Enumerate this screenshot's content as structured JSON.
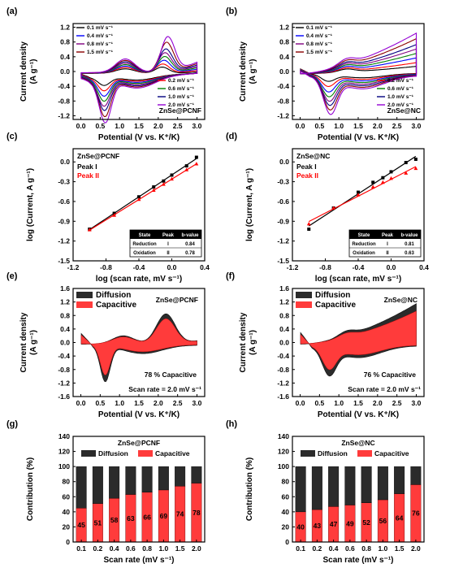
{
  "panels": [
    {
      "id": "a",
      "letter": "(a)",
      "type": "cv",
      "sample": "ZnSe@PCNF",
      "ylabel1": "Current density",
      "ylabel2": "(A g⁻¹)",
      "xlabel": "Potential (V vs. K⁺/K)",
      "xlim": [
        -0.2,
        3.2
      ],
      "ylim": [
        -1.3,
        1.3
      ],
      "xticks": [
        "0.0",
        "0.5",
        "1.0",
        "1.5",
        "2.0",
        "2.5",
        "3.0"
      ],
      "yticks": [
        "-1.2",
        "-0.8",
        "-0.4",
        "0.0",
        "0.4",
        "0.8",
        "1.2"
      ],
      "legend_left": [
        "0.1 mV s⁻¹",
        "0.4 mV s⁻¹",
        "0.8 mV s⁻¹",
        "1.5 mV s⁻¹"
      ],
      "legend_right": [
        "0.2 mV s⁻¹",
        "0.6 mV s⁻¹",
        "1.0 mV s⁻¹",
        "2.0 mV s⁻¹"
      ]
    },
    {
      "id": "b",
      "letter": "(b)",
      "type": "cv",
      "sample": "ZnSe@NC",
      "ylabel1": "Current density",
      "ylabel2": "(A g⁻¹)",
      "xlabel": "Potential (V vs. K⁺/K)",
      "xlim": [
        -0.2,
        3.2
      ],
      "ylim": [
        -1.3,
        1.3
      ],
      "xticks": [
        "0.0",
        "0.5",
        "1.0",
        "1.5",
        "2.0",
        "2.5",
        "3.0"
      ],
      "yticks": [
        "-1.2",
        "-0.8",
        "-0.4",
        "0.0",
        "0.4",
        "0.8",
        "1.2"
      ],
      "legend_left": [
        "0.1 mV s⁻¹",
        "0.4 mV s⁻¹",
        "0.8 mV s⁻¹",
        "1.5 mV s⁻¹"
      ],
      "legend_right": [
        "0.2 mV s⁻¹",
        "0.6 mV s⁻¹",
        "1.0 mV s⁻¹",
        "2.0 mV s⁻¹"
      ]
    },
    {
      "id": "c",
      "letter": "(c)",
      "type": "log",
      "sample": "ZnSe@PCNF",
      "ylabel": "log (Current, A g⁻¹)",
      "xlabel": "log (scan rate, mV s⁻¹)",
      "xlim": [
        -1.2,
        0.4
      ],
      "ylim": [
        -1.5,
        0.2
      ],
      "xticks": [
        "-1.2",
        "-0.8",
        "-0.4",
        "0.0",
        "0.4"
      ],
      "yticks": [
        "-1.5",
        "-1.2",
        "-0.9",
        "-0.6",
        "-0.3",
        "0.0"
      ],
      "peak_labels": [
        "Peak I",
        "Peak II"
      ],
      "table": {
        "header": [
          "State",
          "Peak",
          "b-value"
        ],
        "rows": [
          [
            "Reduction",
            "I",
            "0.84"
          ],
          [
            "Oxidation",
            "II",
            "0.78"
          ]
        ]
      }
    },
    {
      "id": "d",
      "letter": "(d)",
      "type": "log",
      "sample": "ZnSe@NC",
      "ylabel": "log (Current, A g⁻¹)",
      "xlabel": "log (scan rate, mV s⁻¹)",
      "xlim": [
        -1.2,
        0.4
      ],
      "ylim": [
        -1.5,
        0.2
      ],
      "xticks": [
        "-1.2",
        "-0.8",
        "-0.4",
        "0.0",
        "0.4"
      ],
      "yticks": [
        "-1.5",
        "-1.2",
        "-0.9",
        "-0.6",
        "-0.3",
        "0.0"
      ],
      "peak_labels": [
        "Peak I",
        "Peak II"
      ],
      "table": {
        "header": [
          "State",
          "Peak",
          "b-value"
        ],
        "rows": [
          [
            "Reduction",
            "I",
            "0.81"
          ],
          [
            "Oxidation",
            "II",
            "0.63"
          ]
        ]
      }
    },
    {
      "id": "e",
      "letter": "(e)",
      "type": "cap",
      "sample": "ZnSe@PCNF",
      "ylabel1": "Current density",
      "ylabel2": "(A g⁻¹)",
      "xlabel": "Potential (V vs. K⁺/K)",
      "xlim": [
        -0.2,
        3.2
      ],
      "ylim": [
        -1.6,
        1.6
      ],
      "xticks": [
        "0.0",
        "0.5",
        "1.0",
        "1.5",
        "2.0",
        "2.5",
        "3.0"
      ],
      "yticks": [
        "-1.6",
        "-1.2",
        "-0.8",
        "-0.4",
        "0.0",
        "0.4",
        "0.8",
        "1.2",
        "1.6"
      ],
      "legend": [
        "Diffusion",
        "Capacitive"
      ],
      "note": "78 % Capacitive",
      "scan_note": "Scan rate = 2.0 mV s⁻¹"
    },
    {
      "id": "f",
      "letter": "(f)",
      "type": "cap",
      "sample": "ZnSe@NC",
      "ylabel1": "Current density",
      "ylabel2": "(A g⁻¹)",
      "xlabel": "Potential (V vs. K⁺/K)",
      "xlim": [
        -0.2,
        3.2
      ],
      "ylim": [
        -1.6,
        1.6
      ],
      "xticks": [
        "0.0",
        "0.5",
        "1.0",
        "1.5",
        "2.0",
        "2.5",
        "3.0"
      ],
      "yticks": [
        "-1.6",
        "-1.2",
        "-0.8",
        "-0.4",
        "0.0",
        "0.4",
        "0.8",
        "1.2",
        "1.6"
      ],
      "legend": [
        "Diffusion",
        "Capacitive"
      ],
      "note": "76 % Capacitive",
      "scan_note": "Scan rate = 2.0 mV s⁻¹"
    },
    {
      "id": "g",
      "letter": "(g)",
      "type": "bar",
      "sample": "ZnSe@PCNF",
      "ylabel": "Contribution (%)",
      "xlabel": "Scan rate (mV s⁻¹)",
      "yticks": [
        "0",
        "20",
        "40",
        "60",
        "80",
        "100",
        "120",
        "140"
      ],
      "legend": [
        "Diffusion",
        "Capacitive"
      ]
    },
    {
      "id": "h",
      "letter": "(h)",
      "type": "bar",
      "sample": "ZnSe@NC",
      "ylabel": "Contribution (%)",
      "xlabel": "Scan rate (mV s⁻¹)",
      "yticks": [
        "0",
        "20",
        "40",
        "60",
        "80",
        "100",
        "120",
        "140"
      ],
      "legend": [
        "Diffusion",
        "Capacitive"
      ]
    }
  ],
  "chart_data": [
    {
      "panel": "a",
      "type": "line",
      "title": "ZnSe@PCNF",
      "xlabel": "Potential (V vs. K⁺/K)",
      "ylabel": "Current density (A g⁻¹)",
      "xlim": [
        -0.2,
        3.2
      ],
      "ylim": [
        -1.3,
        1.3
      ],
      "potential_window": [
        0.01,
        3.0
      ],
      "series": [
        {
          "name": "0.1 mV s⁻¹",
          "color": "#000000",
          "cathodic_peak": {
            "x": 0.6,
            "y": -0.3
          },
          "anodic_peak": {
            "x": 2.1,
            "y": 0.12
          }
        },
        {
          "name": "0.2 mV s⁻¹",
          "color": "#ff0000",
          "cathodic_peak": {
            "x": 0.6,
            "y": -0.43
          },
          "anodic_peak": {
            "x": 2.12,
            "y": 0.2
          }
        },
        {
          "name": "0.4 mV s⁻¹",
          "color": "#0000ff",
          "cathodic_peak": {
            "x": 0.6,
            "y": -0.56
          },
          "anodic_peak": {
            "x": 2.15,
            "y": 0.3
          }
        },
        {
          "name": "0.6 mV s⁻¹",
          "color": "#008000",
          "cathodic_peak": {
            "x": 0.6,
            "y": -0.68
          },
          "anodic_peak": {
            "x": 2.17,
            "y": 0.4
          }
        },
        {
          "name": "0.8 mV s⁻¹",
          "color": "#800080",
          "cathodic_peak": {
            "x": 0.6,
            "y": -0.8
          },
          "anodic_peak": {
            "x": 2.18,
            "y": 0.5
          }
        },
        {
          "name": "1.0 mV s⁻¹",
          "color": "#000080",
          "cathodic_peak": {
            "x": 0.61,
            "y": -0.9
          },
          "anodic_peak": {
            "x": 2.2,
            "y": 0.6
          }
        },
        {
          "name": "1.5 mV s⁻¹",
          "color": "#8b0000",
          "cathodic_peak": {
            "x": 0.62,
            "y": -1.05
          },
          "anodic_peak": {
            "x": 2.22,
            "y": 0.78
          }
        },
        {
          "name": "2.0 mV s⁻¹",
          "color": "#9400d3",
          "cathodic_peak": {
            "x": 0.63,
            "y": -1.2
          },
          "anodic_peak": {
            "x": 2.25,
            "y": 0.93
          }
        }
      ]
    },
    {
      "panel": "b",
      "type": "line",
      "title": "ZnSe@NC",
      "xlabel": "Potential (V vs. K⁺/K)",
      "ylabel": "Current density (A g⁻¹)",
      "xlim": [
        -0.2,
        3.2
      ],
      "ylim": [
        -1.3,
        1.3
      ],
      "potential_window": [
        0.01,
        3.0
      ],
      "series": [
        {
          "name": "0.1 mV s⁻¹",
          "color": "#000000",
          "cathodic_peak": {
            "x": 0.72,
            "y": -0.3
          },
          "anodic_max_at_3V": 0.15
        },
        {
          "name": "0.2 mV s⁻¹",
          "color": "#ff0000",
          "cathodic_peak": {
            "x": 0.72,
            "y": -0.42
          },
          "anodic_max_at_3V": 0.25
        },
        {
          "name": "0.4 mV s⁻¹",
          "color": "#0000ff",
          "cathodic_peak": {
            "x": 0.73,
            "y": -0.55
          },
          "anodic_max_at_3V": 0.38
        },
        {
          "name": "0.6 mV s⁻¹",
          "color": "#008000",
          "cathodic_peak": {
            "x": 0.74,
            "y": -0.66
          },
          "anodic_max_at_3V": 0.5
        },
        {
          "name": "0.8 mV s⁻¹",
          "color": "#800080",
          "cathodic_peak": {
            "x": 0.75,
            "y": -0.76
          },
          "anodic_max_at_3V": 0.62
        },
        {
          "name": "1.0 mV s⁻¹",
          "color": "#000080",
          "cathodic_peak": {
            "x": 0.76,
            "y": -0.85
          },
          "anodic_max_at_3V": 0.74
        },
        {
          "name": "1.5 mV s⁻¹",
          "color": "#8b0000",
          "cathodic_peak": {
            "x": 0.77,
            "y": -0.95
          },
          "anodic_max_at_3V": 0.9
        },
        {
          "name": "2.0 mV s⁻¹",
          "color": "#9400d3",
          "cathodic_peak": {
            "x": 0.78,
            "y": -1.05
          },
          "anodic_max_at_3V": 1.05
        }
      ]
    },
    {
      "panel": "c",
      "type": "scatter",
      "title": "ZnSe@PCNF",
      "xlabel": "log (scan rate, mV s⁻¹)",
      "ylabel": "log (Current, A g⁻¹)",
      "xlim": [
        -1.2,
        0.4
      ],
      "ylim": [
        -1.5,
        0.2
      ],
      "x": [
        -1.0,
        -0.7,
        -0.4,
        -0.22,
        -0.1,
        0.0,
        0.18,
        0.3
      ],
      "series": [
        {
          "name": "Peak I",
          "color": "#000000",
          "values": [
            -1.02,
            -0.78,
            -0.53,
            -0.38,
            -0.29,
            -0.2,
            -0.06,
            0.07
          ]
        },
        {
          "name": "Peak II",
          "color": "#ff0000",
          "values": [
            -1.03,
            -0.81,
            -0.57,
            -0.43,
            -0.34,
            -0.26,
            -0.12,
            -0.03
          ]
        }
      ]
    },
    {
      "panel": "d",
      "type": "scatter",
      "title": "ZnSe@NC",
      "xlabel": "log (scan rate, mV s⁻¹)",
      "ylabel": "log (Current, A g⁻¹)",
      "xlim": [
        -1.2,
        0.4
      ],
      "ylim": [
        -1.5,
        0.2
      ],
      "x": [
        -1.0,
        -0.7,
        -0.4,
        -0.22,
        -0.1,
        0.0,
        0.18,
        0.3
      ],
      "series": [
        {
          "name": "Peak I",
          "color": "#000000",
          "values": [
            -1.02,
            -0.7,
            -0.46,
            -0.31,
            -0.24,
            -0.15,
            -0.01,
            0.04
          ]
        },
        {
          "name": "Peak II",
          "color": "#ff0000",
          "values": [
            -0.94,
            -0.7,
            -0.5,
            -0.38,
            -0.31,
            -0.25,
            -0.17,
            -0.1
          ]
        }
      ]
    },
    {
      "panel": "e",
      "type": "area",
      "title": "ZnSe@PCNF",
      "xlabel": "Potential (V vs. K⁺/K)",
      "ylabel": "Current density (A g⁻¹)",
      "xlim": [
        -0.2,
        3.2
      ],
      "ylim": [
        -1.6,
        1.6
      ],
      "scan_rate": 2.0,
      "capacitive_percent": 78,
      "series": [
        {
          "name": "Diffusion",
          "color": "#2b2b2b"
        },
        {
          "name": "Capacitive",
          "color": "#ff3b3b"
        }
      ]
    },
    {
      "panel": "f",
      "type": "area",
      "title": "ZnSe@NC",
      "xlabel": "Potential (V vs. K⁺/K)",
      "ylabel": "Current density (A g⁻¹)",
      "xlim": [
        -0.2,
        3.2
      ],
      "ylim": [
        -1.6,
        1.6
      ],
      "scan_rate": 2.0,
      "capacitive_percent": 76,
      "series": [
        {
          "name": "Diffusion",
          "color": "#2b2b2b"
        },
        {
          "name": "Capacitive",
          "color": "#ff3b3b"
        }
      ]
    },
    {
      "panel": "g",
      "type": "bar",
      "title": "ZnSe@PCNF",
      "xlabel": "Scan rate (mV s⁻¹)",
      "ylabel": "Contribution (%)",
      "ylim": [
        0,
        140
      ],
      "categories": [
        "0.1",
        "0.2",
        "0.4",
        "0.6",
        "0.8",
        "1.0",
        "1.5",
        "2.0"
      ],
      "series": [
        {
          "name": "Capacitive",
          "color": "#ff3b3b",
          "values": [
            45,
            51,
            58,
            63,
            66,
            69,
            74,
            78
          ]
        },
        {
          "name": "Diffusion",
          "color": "#2b2b2b",
          "values": [
            55,
            49,
            42,
            37,
            34,
            31,
            26,
            22
          ]
        }
      ]
    },
    {
      "panel": "h",
      "type": "bar",
      "title": "ZnSe@NC",
      "xlabel": "Scan rate (mV s⁻¹)",
      "ylabel": "Contribution (%)",
      "ylim": [
        0,
        140
      ],
      "categories": [
        "0.1",
        "0.2",
        "0.4",
        "0.6",
        "0.8",
        "1.0",
        "1.5",
        "2.0"
      ],
      "series": [
        {
          "name": "Capacitive",
          "color": "#ff3b3b",
          "values": [
            40,
            43,
            47,
            49,
            52,
            56,
            64,
            76
          ]
        },
        {
          "name": "Diffusion",
          "color": "#2b2b2b",
          "values": [
            60,
            57,
            53,
            51,
            48,
            44,
            36,
            24
          ]
        }
      ]
    }
  ]
}
